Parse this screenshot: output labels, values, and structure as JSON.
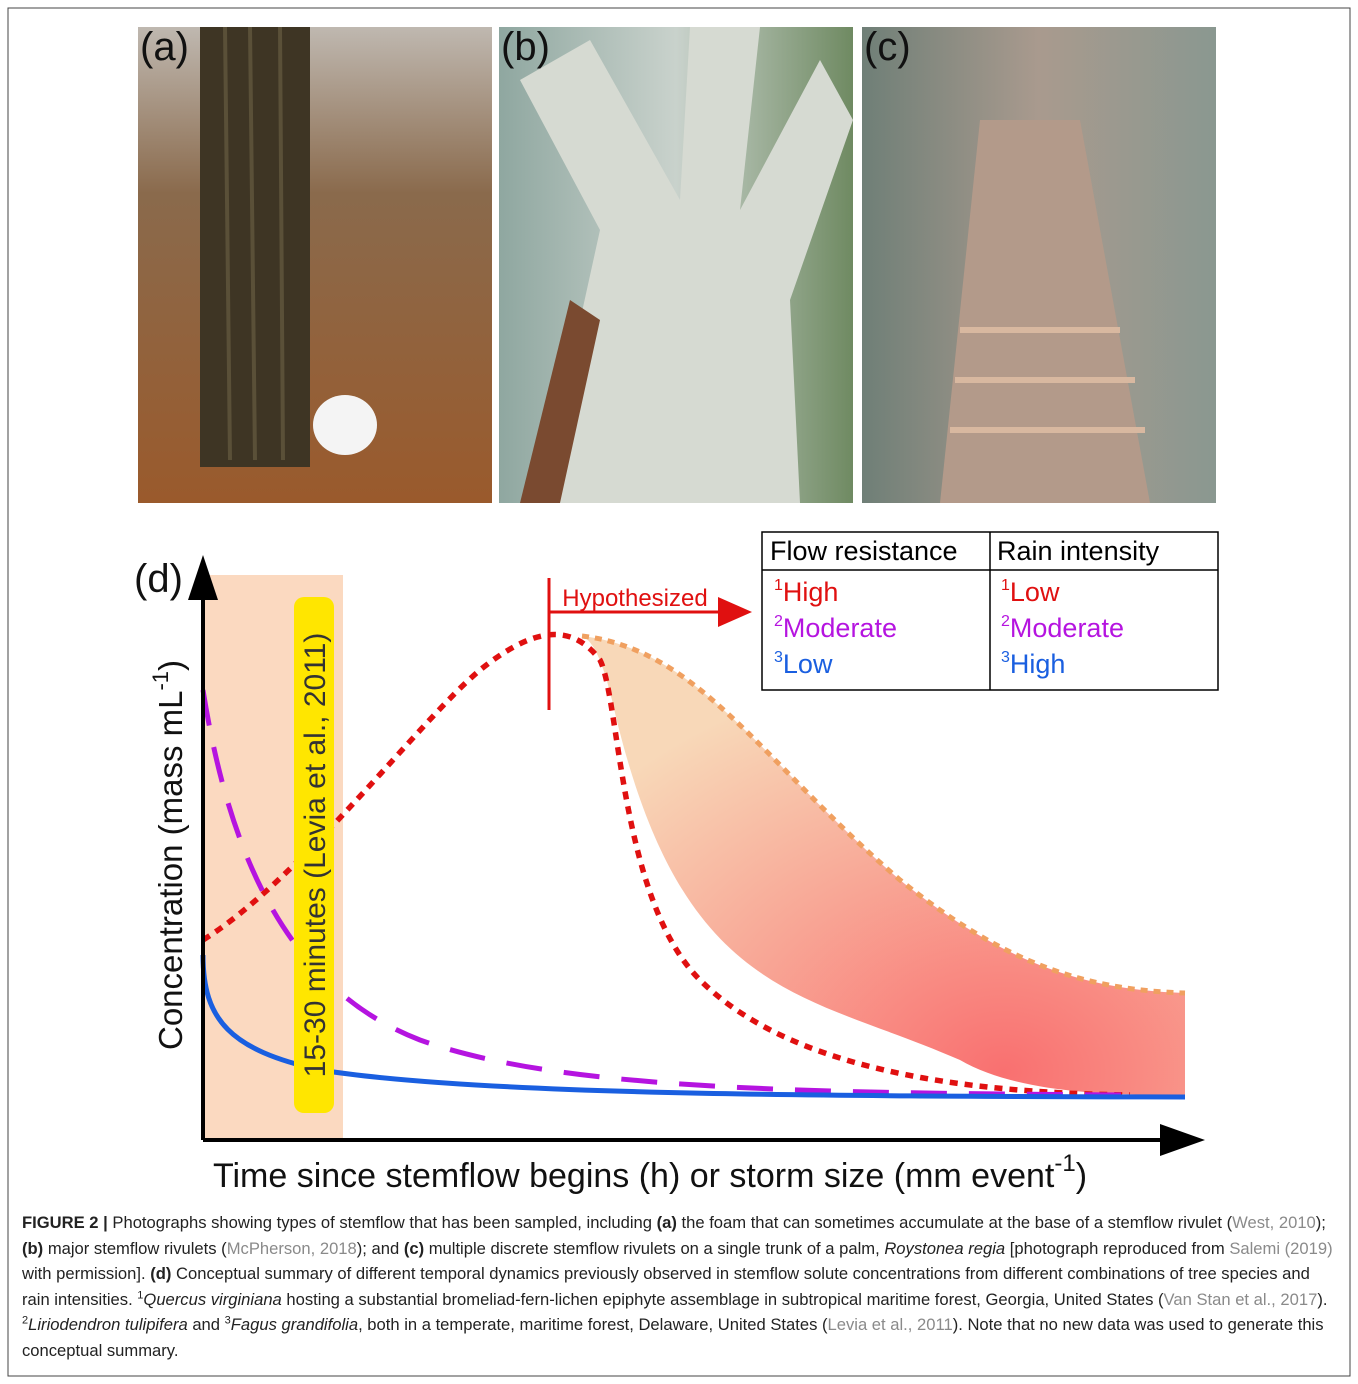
{
  "panels": [
    {
      "label": "(a)"
    },
    {
      "label": "(b)"
    },
    {
      "label": "(c)"
    }
  ],
  "diagram": {
    "label": "(d)",
    "y_axis_label": {
      "text": "Concentration (mass mL",
      "sup": "-1",
      "end": ")"
    },
    "x_axis_label": {
      "text": "Time since stemflow begins (h) or storm size (mm event",
      "sup": "-1",
      "end": ")"
    },
    "shaded_label": "15-30 minutes (Levia et al., 2011)",
    "arrow_label": "Hypothesized",
    "table": {
      "headers": [
        "Flow resistance",
        "Rain intensity"
      ],
      "rows": [
        [
          {
            "sup": "1",
            "text": "High"
          },
          {
            "sup": "1",
            "text": "Low"
          }
        ],
        [
          {
            "sup": "2",
            "text": "Moderate"
          },
          {
            "sup": "2",
            "text": "Moderate"
          }
        ],
        [
          {
            "sup": "3",
            "text": "Low"
          },
          {
            "sup": "3",
            "text": "High"
          }
        ]
      ]
    }
  },
  "caption": [
    {
      "text": "FIGURE 2 |",
      "style": "b"
    },
    {
      "text": " Photographs showing types of stemflow that has been sampled, including ",
      "style": "n"
    },
    {
      "text": "(a)",
      "style": "b"
    },
    {
      "text": " the foam that can sometimes accumulate at the base of a stemflow rivulet (",
      "style": "n"
    },
    {
      "text": "West, 2010",
      "style": "link"
    },
    {
      "text": "); ",
      "style": "n"
    },
    {
      "text": "(b)",
      "style": "b"
    },
    {
      "text": " major stemflow rivulets (",
      "style": "n"
    },
    {
      "text": "McPherson, 2018",
      "style": "link"
    },
    {
      "text": "); and ",
      "style": "n"
    },
    {
      "text": "(c)",
      "style": "b"
    },
    {
      "text": " multiple discrete stemflow rivulets on a single trunk of a palm, ",
      "style": "n"
    },
    {
      "text": "Roystonea regia",
      "style": "i"
    },
    {
      "text": " [photograph reproduced from ",
      "style": "n"
    },
    {
      "text": "Salemi (2019)",
      "style": "link"
    },
    {
      "text": " with permission]. ",
      "style": "n"
    },
    {
      "text": "(d)",
      "style": "b"
    },
    {
      "text": " Conceptual summary of different temporal dynamics previously observed in stemflow solute concentrations from different combinations of tree species and rain intensities. ",
      "style": "n"
    },
    {
      "text": "1",
      "style": "sup"
    },
    {
      "text": "Quercus virginiana",
      "style": "i"
    },
    {
      "text": " hosting a substantial bromeliad-fern-lichen epiphyte assemblage in subtropical maritime forest, Georgia, United States (",
      "style": "n"
    },
    {
      "text": "Van Stan et al., 2017",
      "style": "link"
    },
    {
      "text": "). ",
      "style": "n"
    },
    {
      "text": "2",
      "style": "sup"
    },
    {
      "text": "Liriodendron tulipifera",
      "style": "i"
    },
    {
      "text": " and ",
      "style": "n"
    },
    {
      "text": "3",
      "style": "sup"
    },
    {
      "text": "Fagus grandifolia",
      "style": "i"
    },
    {
      "text": ", both in a temperate, maritime forest, Delaware, United States (",
      "style": "n"
    },
    {
      "text": "Levia et al., 2011",
      "style": "link"
    },
    {
      "text": "). Note that no new data was used to generate this conceptual summary.",
      "style": "n"
    }
  ]
}
